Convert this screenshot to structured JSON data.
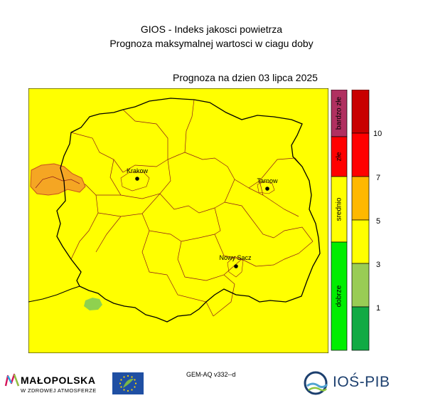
{
  "header": {
    "title": "GIOS - Indeks jakosci powietrza",
    "subtitle": "Prognoza maksymalnej wartosci w ciagu doby",
    "forecast_date": "Prognoza na dzien  03 lipca 2025"
  },
  "map": {
    "background_color": "#ffff00",
    "cities": [
      {
        "name": "Krakow"
      },
      {
        "name": "Tarnow"
      },
      {
        "name": "Nowy Sacz"
      }
    ],
    "patches": [
      {
        "category": "srednio-zle",
        "color": "#f5a623"
      },
      {
        "category": "dobrze",
        "color": "#8fd14f"
      }
    ]
  },
  "legend": {
    "categories": [
      {
        "label": "bardzo złe",
        "color": "#b03060"
      },
      {
        "label": "złe",
        "color": "#ff0000"
      },
      {
        "label": "srednio",
        "color": "#ffff00"
      },
      {
        "label": "dobrze",
        "color": "#00ee00"
      }
    ],
    "scale_colors": [
      "#c80000",
      "#ff0000",
      "#ffb800",
      "#ffff00",
      "#99cc55",
      "#11aa44"
    ],
    "ticks": [
      "10",
      "7",
      "5",
      "3",
      "1"
    ]
  },
  "footer": {
    "model": "GEM-AQ v332--d",
    "malopolska_name": "MAŁOPOLSKA",
    "malopolska_tagline": "W ZDROWEJ ATMOSFERZE",
    "ios_name": "IOŚ-PIB",
    "eu_flag_icon": "eu-flag-icon",
    "life_icon": "life-icon"
  }
}
